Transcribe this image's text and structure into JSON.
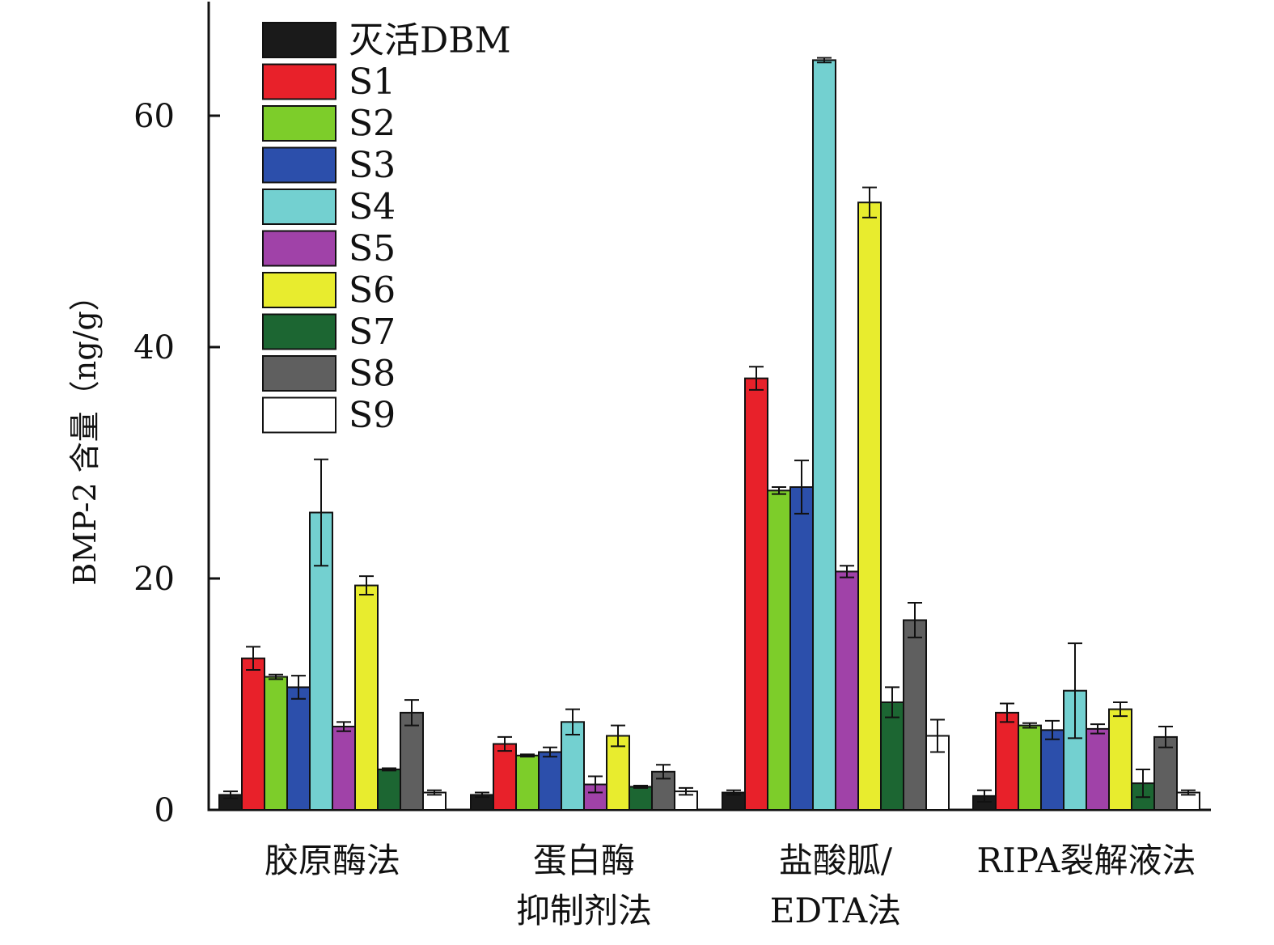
{
  "chart_data": {
    "type": "bar",
    "ylabel": "BMP-2 含量（ng/g）",
    "ylim": [
      0,
      70
    ],
    "yticks": [
      0,
      20,
      40,
      60
    ],
    "grid": false,
    "legend_position": "top-left",
    "categories": [
      [
        "胶原酶法"
      ],
      [
        "蛋白酶",
        "抑制剂法"
      ],
      [
        "盐酸胍/",
        "EDTA法"
      ],
      [
        "RIPA裂解液法"
      ]
    ],
    "series": [
      {
        "name": "灭活DBM",
        "color": "#1a1a1a",
        "values": [
          1.3,
          1.3,
          1.5,
          1.2
        ],
        "errors": [
          0.3,
          0.2,
          0.2,
          0.5
        ]
      },
      {
        "name": "S1",
        "color": "#e8212a",
        "values": [
          13.1,
          5.7,
          37.3,
          8.4
        ],
        "errors": [
          1.0,
          0.6,
          1.0,
          0.8
        ]
      },
      {
        "name": "S2",
        "color": "#7dcd2a",
        "values": [
          11.5,
          4.7,
          27.6,
          7.3
        ],
        "errors": [
          0.2,
          0.1,
          0.3,
          0.2
        ]
      },
      {
        "name": "S3",
        "color": "#2c4fab",
        "values": [
          10.6,
          5.0,
          27.9,
          6.9
        ],
        "errors": [
          1.0,
          0.4,
          2.3,
          0.8
        ]
      },
      {
        "name": "S4",
        "color": "#73d0d0",
        "values": [
          25.7,
          7.6,
          64.8,
          10.3
        ],
        "errors": [
          4.6,
          1.1,
          0.2,
          4.1
        ]
      },
      {
        "name": "S5",
        "color": "#a042a8",
        "values": [
          7.2,
          2.2,
          20.6,
          7.0
        ],
        "errors": [
          0.4,
          0.7,
          0.5,
          0.4
        ]
      },
      {
        "name": "S6",
        "color": "#e8ec2e",
        "values": [
          19.4,
          6.4,
          52.5,
          8.7
        ],
        "errors": [
          0.8,
          0.9,
          1.3,
          0.6
        ]
      },
      {
        "name": "S7",
        "color": "#1c6632",
        "values": [
          3.5,
          2.0,
          9.3,
          2.3
        ],
        "errors": [
          0.1,
          0.1,
          1.3,
          1.2
        ]
      },
      {
        "name": "S8",
        "color": "#5f5f5f",
        "values": [
          8.4,
          3.3,
          16.4,
          6.3
        ],
        "errors": [
          1.1,
          0.6,
          1.5,
          0.9
        ]
      },
      {
        "name": "S9",
        "color": "#ffffff",
        "values": [
          1.5,
          1.6,
          6.4,
          1.5
        ],
        "errors": [
          0.2,
          0.3,
          1.4,
          0.2
        ]
      }
    ]
  }
}
